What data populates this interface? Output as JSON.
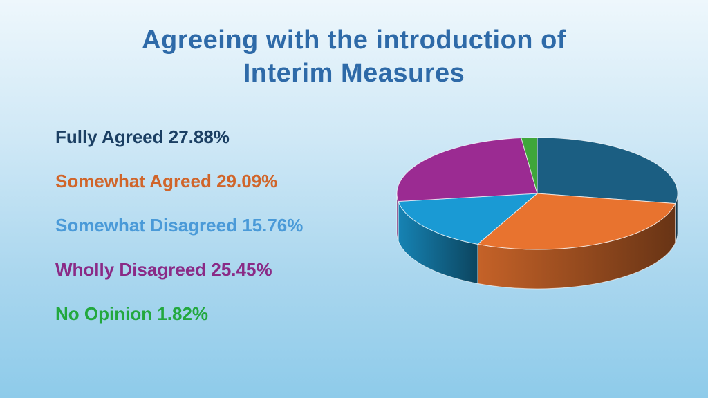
{
  "slide": {
    "title_line1": "Agreeing with the introduction of",
    "title_line2": "Interim Measures",
    "title_color": "#2e6aa8"
  },
  "chart_data": {
    "type": "pie",
    "title": "Agreeing with the introduction of Interim Measures",
    "style": "3d",
    "legend_placement": "left",
    "slices": [
      {
        "label": "Fully Agreed 27.88%",
        "name": "Fully Agreed",
        "value": 27.88,
        "color": "#1b5e82",
        "text_color": "#1b3f63"
      },
      {
        "label": "Somewhat Agreed 29.09%",
        "name": "Somewhat Agreed",
        "value": 29.09,
        "color": "#e8732f",
        "text_color": "#d0652a"
      },
      {
        "label": "Somewhat Disagreed 15.76%",
        "name": "Somewhat Disagreed",
        "value": 15.76,
        "color": "#1a9ad4",
        "text_color": "#4a9ad8"
      },
      {
        "label": "Wholly Disagreed 25.45%",
        "name": "Wholly Disagreed",
        "value": 25.45,
        "color": "#9b2b92",
        "text_color": "#8a2a86"
      },
      {
        "label": "No Opinion 1.82%",
        "name": "No Opinion",
        "value": 1.82,
        "color": "#3fa63a",
        "text_color": "#22a83e"
      }
    ]
  }
}
